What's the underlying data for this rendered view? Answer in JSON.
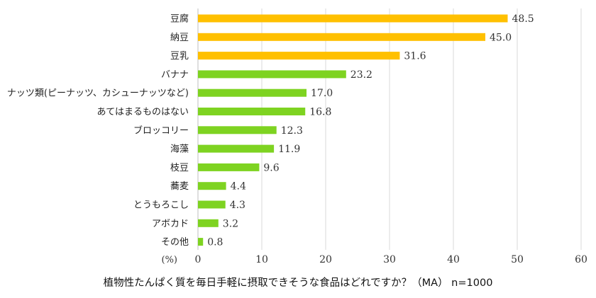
{
  "chart_data": {
    "type": "bar",
    "orientation": "horizontal",
    "categories": [
      "豆腐",
      "納豆",
      "豆乳",
      "バナナ",
      "ナッツ類(ピーナッツ、カシューナッツなど)",
      "あてはまるものはない",
      "ブロッコリー",
      "海藻",
      "枝豆",
      "蕎麦",
      "とうもろこし",
      "アボカド",
      "その他"
    ],
    "values": [
      48.5,
      45.0,
      31.6,
      23.2,
      17.0,
      16.8,
      12.3,
      11.9,
      9.6,
      4.4,
      4.3,
      3.2,
      0.8
    ],
    "value_labels": [
      "48.5",
      "45.0",
      "31.6",
      "23.2",
      "17.0",
      "16.8",
      "12.3",
      "11.9",
      "9.6",
      "4.4",
      "4.3",
      "3.2",
      "0.8"
    ],
    "bar_colors": [
      "#FFC000",
      "#FFC000",
      "#FFC000",
      "#7ED321",
      "#7ED321",
      "#7ED321",
      "#7ED321",
      "#7ED321",
      "#7ED321",
      "#7ED321",
      "#7ED321",
      "#7ED321",
      "#7ED321"
    ],
    "xlim": [
      0,
      60
    ],
    "xticks": [
      0,
      10,
      20,
      30,
      40,
      50,
      60
    ],
    "tick_labels": [
      "0",
      "10",
      "20",
      "30",
      "40",
      "50",
      "60"
    ],
    "unit_label": "(%)",
    "xlabel": "植物性たんぱく質を毎日手軽に摂取できそうな食品はどれですか？（MA） n=1000",
    "title": "",
    "ylabel": "",
    "grid": true,
    "legend": "none"
  }
}
